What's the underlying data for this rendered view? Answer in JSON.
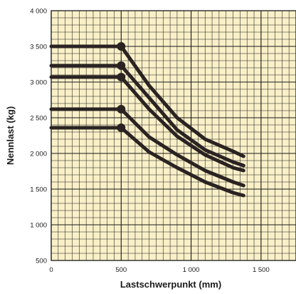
{
  "chart_data": {
    "type": "line",
    "xlabel": "Lastschwerpunkt (mm)",
    "ylabel": "Nennlast (kg)",
    "xlim": [
      0,
      1750
    ],
    "ylim": [
      500,
      4000
    ],
    "x_ticks": [
      0,
      500,
      1000,
      1500
    ],
    "x_tick_labels": [
      "0",
      "500",
      "1 000",
      "1 500"
    ],
    "y_ticks": [
      500,
      1000,
      1500,
      2000,
      2500,
      3000,
      3500,
      4000
    ],
    "y_tick_labels": [
      "500",
      "1 000",
      "1 500",
      "2 000",
      "2 500",
      "3 000",
      "3 500",
      "4 000"
    ],
    "grid": true,
    "minor_grid_step": {
      "x": 50,
      "y": 100
    },
    "colors": {
      "background": "#faf0c8",
      "grid": "#1a1a1a",
      "line": "#2a2322"
    },
    "series": [
      {
        "x": [
          0,
          500,
          700,
          900,
          1100,
          1300,
          1375
        ],
        "values": [
          3500,
          3500,
          2950,
          2500,
          2200,
          2030,
          1960
        ]
      },
      {
        "x": [
          0,
          500,
          700,
          900,
          1100,
          1300,
          1375
        ],
        "values": [
          3230,
          3230,
          2780,
          2330,
          2050,
          1880,
          1830
        ]
      },
      {
        "x": [
          0,
          500,
          700,
          900,
          1100,
          1300,
          1375
        ],
        "values": [
          3070,
          3070,
          2620,
          2240,
          1980,
          1800,
          1760
        ]
      },
      {
        "x": [
          0,
          500,
          700,
          900,
          1100,
          1300,
          1375
        ],
        "values": [
          2620,
          2620,
          2230,
          1980,
          1760,
          1600,
          1550
        ]
      },
      {
        "x": [
          0,
          500,
          700,
          900,
          1100,
          1300,
          1375
        ],
        "values": [
          2360,
          2360,
          2020,
          1800,
          1600,
          1450,
          1410
        ]
      }
    ]
  }
}
